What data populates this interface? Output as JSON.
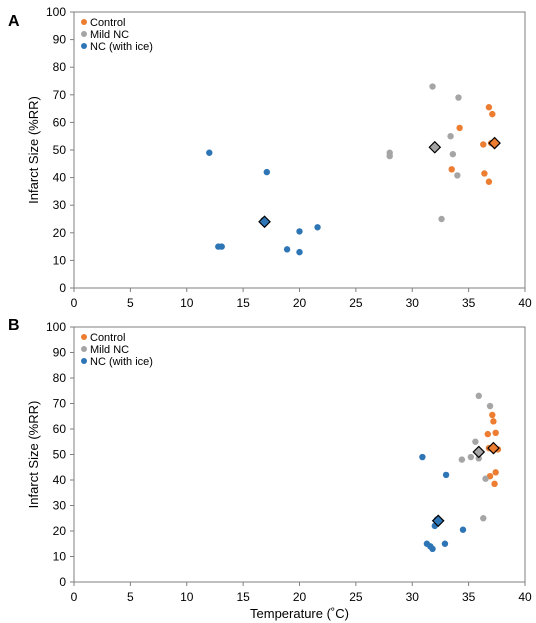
{
  "colors": {
    "control": "#ED7D31",
    "mild": "#A5A5A5",
    "nc": "#2E75B6",
    "mean_outline": "#000000"
  },
  "chart_data": [
    {
      "type": "scatter",
      "panel_label": "A",
      "xlabel": "",
      "ylabel": "Infarct Size (%RR)",
      "xlim": [
        0,
        40
      ],
      "ylim": [
        0,
        100
      ],
      "xticks": [
        0,
        5,
        10,
        15,
        20,
        25,
        30,
        35,
        40
      ],
      "yticks": [
        0,
        10,
        20,
        30,
        40,
        50,
        60,
        70,
        80,
        90,
        100
      ],
      "grid": false,
      "legend_position": "top-left",
      "series": [
        {
          "name": "Control",
          "color": "#ED7D31",
          "points": [
            [
              36.8,
              65.5
            ],
            [
              37.1,
              63
            ],
            [
              34.2,
              58
            ],
            [
              36.3,
              52
            ],
            [
              37.0,
              52.5
            ],
            [
              33.5,
              43
            ],
            [
              36.4,
              41.5
            ],
            [
              36.8,
              38.5
            ]
          ],
          "mean": [
            37.3,
            52.5
          ]
        },
        {
          "name": "Mild NC",
          "color": "#A5A5A5",
          "points": [
            [
              31.8,
              73
            ],
            [
              34.1,
              69
            ],
            [
              33.4,
              55
            ],
            [
              28.0,
              49
            ],
            [
              28.0,
              47.8
            ],
            [
              33.6,
              48.5
            ],
            [
              34.0,
              40.8
            ],
            [
              32.6,
              25
            ]
          ],
          "mean": [
            32.0,
            51
          ]
        },
        {
          "name": "NC (with ice)",
          "color": "#2E75B6",
          "points": [
            [
              12.0,
              49
            ],
            [
              17.1,
              42
            ],
            [
              16.8,
              24.5
            ],
            [
              21.6,
              22
            ],
            [
              20.0,
              20.5
            ],
            [
              12.8,
              15
            ],
            [
              13.1,
              15
            ],
            [
              18.9,
              14
            ],
            [
              20.0,
              13
            ]
          ],
          "mean": [
            16.9,
            24
          ]
        }
      ]
    },
    {
      "type": "scatter",
      "panel_label": "B",
      "xlabel": "Temperature (˚C)",
      "ylabel": "Infarct Size (%RR)",
      "xlim": [
        0,
        40
      ],
      "ylim": [
        0,
        100
      ],
      "xticks": [
        0,
        5,
        10,
        15,
        20,
        25,
        30,
        35,
        40
      ],
      "yticks": [
        0,
        10,
        20,
        30,
        40,
        50,
        60,
        70,
        80,
        90,
        100
      ],
      "grid": false,
      "legend_position": "top-left",
      "series": [
        {
          "name": "Control",
          "color": "#ED7D31",
          "points": [
            [
              37.1,
              65.5
            ],
            [
              37.2,
              63
            ],
            [
              37.4,
              58.5
            ],
            [
              36.7,
              58
            ],
            [
              36.8,
              52.5
            ],
            [
              37.6,
              52
            ],
            [
              37.4,
              43
            ],
            [
              36.9,
              41.5
            ],
            [
              37.3,
              38.5
            ]
          ],
          "mean": [
            37.2,
            52.5
          ]
        },
        {
          "name": "Mild NC",
          "color": "#A5A5A5",
          "points": [
            [
              35.9,
              73
            ],
            [
              36.9,
              69
            ],
            [
              35.6,
              55
            ],
            [
              34.4,
              48
            ],
            [
              35.2,
              49
            ],
            [
              35.9,
              48.5
            ],
            [
              36.5,
              40.5
            ],
            [
              36.3,
              25
            ]
          ],
          "mean": [
            35.9,
            51
          ]
        },
        {
          "name": "NC (with ice)",
          "color": "#2E75B6",
          "points": [
            [
              30.9,
              49
            ],
            [
              33.0,
              42
            ],
            [
              32.2,
              24.5
            ],
            [
              32.0,
              22
            ],
            [
              34.5,
              20.5
            ],
            [
              31.3,
              15
            ],
            [
              32.9,
              15
            ],
            [
              31.6,
              14
            ],
            [
              31.8,
              13
            ]
          ],
          "mean": [
            32.3,
            24
          ]
        }
      ]
    }
  ]
}
